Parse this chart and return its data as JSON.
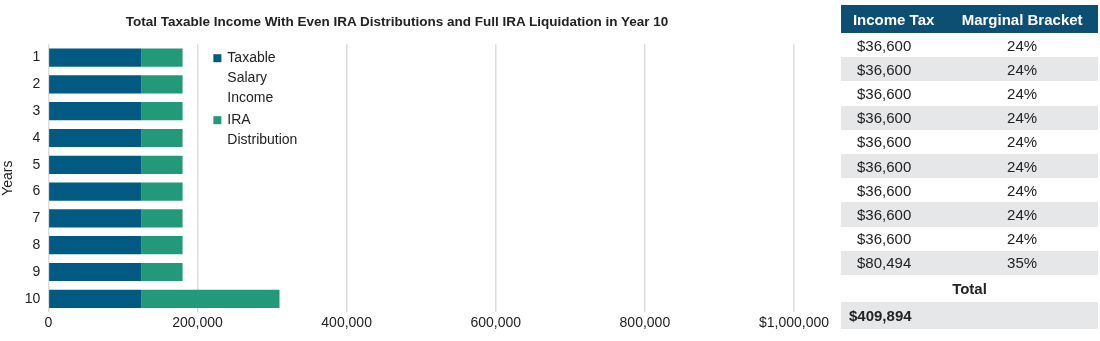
{
  "chart_data": [
    {
      "type": "bar",
      "orientation": "horizontal",
      "stacked": true,
      "title": "Total Taxable Income With Even IRA Distributions and Full IRA Liquidation in Year 10",
      "ylabel": "Years",
      "categories": [
        "1",
        "2",
        "3",
        "4",
        "5",
        "6",
        "7",
        "8",
        "9",
        "10"
      ],
      "series": [
        {
          "name": "Taxable Salary Income",
          "color": "#005a82",
          "values": [
            125000,
            125000,
            125000,
            125000,
            125000,
            125000,
            125000,
            125000,
            125000,
            125000
          ]
        },
        {
          "name": "IRA Distribution",
          "color": "#229a7a",
          "values": [
            55000,
            55000,
            55000,
            55000,
            55000,
            55000,
            55000,
            55000,
            55000,
            185000
          ]
        }
      ],
      "xlim": [
        0,
        1000000
      ],
      "xticks": [
        0,
        {
          "value": 200000,
          "label": "200,000"
        },
        {
          "value": 400000,
          "label": "400,000"
        },
        {
          "value": 600000,
          "label": "600,000"
        },
        {
          "value": 800000,
          "label": "800,000"
        },
        {
          "value": 1000000,
          "label": "$1,000,000"
        }
      ],
      "grid": "x",
      "legend": "top left"
    },
    {
      "type": "other",
      "categories": [
        "Income Tax",
        "Marginal Bracket"
      ],
      "cell_labels": [
        [
          "$36,600",
          "24%"
        ],
        [
          "$36,600",
          "24%"
        ],
        [
          "$36,600",
          "24%"
        ],
        [
          "$36,600",
          "24%"
        ],
        [
          "$36,600",
          "24%"
        ],
        [
          "$36,600",
          "24%"
        ],
        [
          "$36,600",
          "24%"
        ],
        [
          "$36,600",
          "24%"
        ],
        [
          "$36,600",
          "24%"
        ],
        [
          "$80,494",
          "35%"
        ]
      ],
      "annotations": [
        "Total",
        "$409,894"
      ]
    }
  ]
}
